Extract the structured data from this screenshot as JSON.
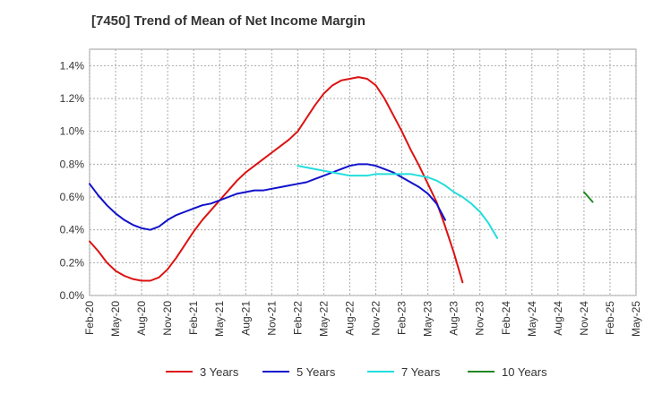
{
  "chart_data": {
    "type": "line",
    "title": "[7450]  Trend of Mean of Net Income Margin",
    "xlabel": "",
    "ylabel": "",
    "x_ticks": [
      "Feb-20",
      "May-20",
      "Aug-20",
      "Nov-20",
      "Feb-21",
      "May-21",
      "Aug-21",
      "Nov-21",
      "Feb-22",
      "May-22",
      "Aug-22",
      "Nov-22",
      "Feb-23",
      "May-23",
      "Aug-23",
      "Nov-23",
      "Feb-24",
      "May-24",
      "Aug-24",
      "Nov-24",
      "Feb-25",
      "May-25"
    ],
    "y_ticks": [
      "0.0%",
      "0.2%",
      "0.4%",
      "0.6%",
      "0.8%",
      "1.0%",
      "1.2%",
      "1.4%"
    ],
    "ylim": [
      0,
      1.5
    ],
    "y_unit": "%",
    "grid": true,
    "legend_position": "bottom",
    "series": [
      {
        "name": "3 Years",
        "color": "#dd1111",
        "x_start": "Feb-20",
        "values": [
          0.33,
          0.27,
          0.2,
          0.15,
          0.12,
          0.1,
          0.09,
          0.09,
          0.11,
          0.16,
          0.23,
          0.31,
          0.39,
          0.46,
          0.52,
          0.58,
          0.64,
          0.7,
          0.75,
          0.79,
          0.83,
          0.87,
          0.91,
          0.95,
          1.0,
          1.08,
          1.16,
          1.23,
          1.28,
          1.31,
          1.32,
          1.33,
          1.32,
          1.28,
          1.2,
          1.1,
          1.0,
          0.89,
          0.79,
          0.68,
          0.57,
          0.42,
          0.26,
          0.08
        ]
      },
      {
        "name": "5 Years",
        "color": "#1111cc",
        "x_start": "Feb-20",
        "values": [
          0.68,
          0.61,
          0.55,
          0.5,
          0.46,
          0.43,
          0.41,
          0.4,
          0.42,
          0.46,
          0.49,
          0.51,
          0.53,
          0.55,
          0.56,
          0.58,
          0.6,
          0.62,
          0.63,
          0.64,
          0.64,
          0.65,
          0.66,
          0.67,
          0.68,
          0.69,
          0.71,
          0.73,
          0.75,
          0.77,
          0.79,
          0.8,
          0.8,
          0.79,
          0.77,
          0.75,
          0.72,
          0.69,
          0.66,
          0.62,
          0.56,
          0.46
        ]
      },
      {
        "name": "7 Years",
        "color": "#22dddd",
        "x_start": "Feb-22",
        "values": [
          0.79,
          0.78,
          0.77,
          0.76,
          0.75,
          0.74,
          0.73,
          0.73,
          0.73,
          0.74,
          0.74,
          0.74,
          0.74,
          0.74,
          0.73,
          0.72,
          0.7,
          0.67,
          0.63,
          0.6,
          0.56,
          0.51,
          0.44,
          0.35
        ]
      },
      {
        "name": "10 Years",
        "color": "#228822",
        "x_start": "Nov-24",
        "values": [
          0.63,
          0.57
        ]
      }
    ]
  }
}
